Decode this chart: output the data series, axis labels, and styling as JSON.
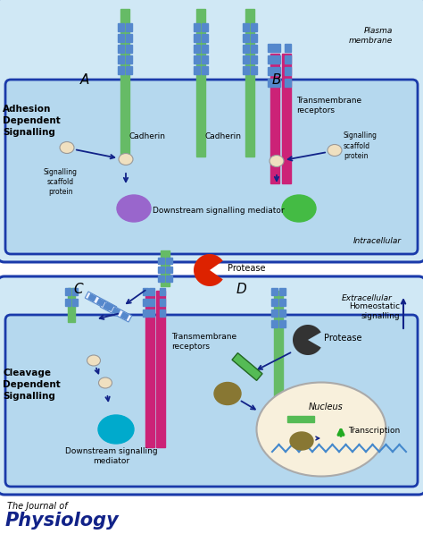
{
  "panel_A_label": "A",
  "panel_B_label": "B",
  "panel_C_label": "C",
  "panel_D_label": "D",
  "left_label_top": "Adhesion\nDependent\nSignalling",
  "left_label_bottom": "Cleavage\nDependent\nSignalling",
  "plasma_membrane_label": "Plasma\nmembrane",
  "intracellular_label": "Intracellular",
  "extracellular_label": "Extracellular",
  "cadherin_label1": "Cadherin",
  "cadherin_label2": "Cadherin",
  "transmembrane_label1": "Transmembrane\nreceptors",
  "transmembrane_label2": "Transmembrane\nreceptors",
  "signalling_scaffold1": "Signalling\nscaffold\nprotein",
  "signalling_scaffold2": "Signalling\nscaffold\nprotein",
  "downstream_label1": "Downstream signalling mediator",
  "downstream_label2": "Downstream signalling\nmediator",
  "protease_label1": "Protease",
  "protease_label2": "Protease",
  "nucleus_label": "Nucleus",
  "transcription_label": "Transcription",
  "homeostatic_label": "Homeostatic\nsignalling",
  "journal_line1": "The Journal of",
  "journal_line2": "Physiology",
  "outer_top_color": "#cce8f4",
  "outer_top_border": "#1a3aaa",
  "inner_top_color": "#b8ddf0",
  "inner_top_border": "#1a3aaa",
  "outer_bot_color": "#cce8f4",
  "outer_bot_border": "#1a3aaa",
  "inner_bot_color": "#b8ddf0",
  "inner_bot_border": "#1a3aaa",
  "extracell_color": "#ddeeff",
  "green_bar_color": "#66bb66",
  "pink_bar_color": "#cc2277",
  "blue_sq_color": "#5588cc",
  "purple_color": "#9966cc",
  "green_mediator_color": "#44bb44",
  "teal_color": "#00aacc",
  "cream_color": "#f0e0c0",
  "olive_color": "#887733",
  "red_protease_color": "#dd2200",
  "dark_protease_color": "#444444",
  "nucleus_fill": "#f8f0dc",
  "nucleus_border": "#aaaaaa",
  "dna_color": "#4488cc",
  "green_rect_color": "#55bb55",
  "arrow_color": "#112288",
  "green_arrow_color": "#22aa22",
  "journal_color": "#112288"
}
